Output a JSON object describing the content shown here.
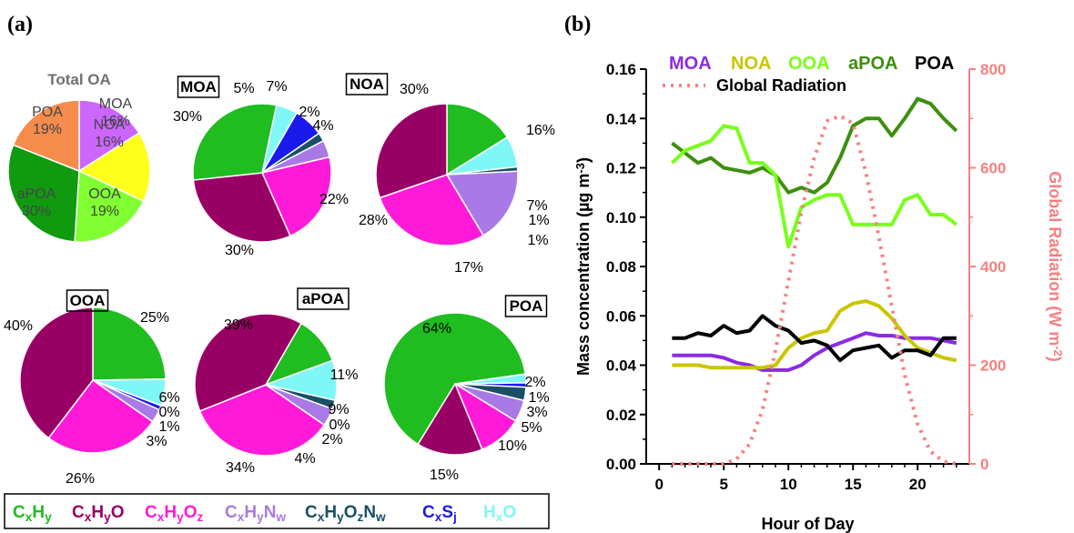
{
  "panels": {
    "a": "(a)",
    "b": "(b)"
  },
  "colors": {
    "CxHy": "#1fbd1f",
    "CxHyO": "#990066",
    "CxHyOz": "#ff1ad9",
    "CxHyNw": "#a97ae6",
    "CxHyOzNw": "#1a4f66",
    "CxSj": "#1a1aeb",
    "HxO": "#7ff7f7",
    "MOA": "#8a2be2",
    "NOA": "#c9c600",
    "OOA": "#78ff1a",
    "aPOA": "#3d8f0f",
    "POA": "#000000",
    "radiation": "#f88080",
    "mass_axis": "#000000"
  },
  "legend_families": [
    {
      "key": "CxHy",
      "parts": [
        [
          "C",
          ""
        ],
        [
          "x",
          "sub"
        ],
        [
          "H",
          ""
        ],
        [
          "y",
          "sub"
        ]
      ]
    },
    {
      "key": "CxHyO",
      "parts": [
        [
          "C",
          ""
        ],
        [
          "x",
          "sub"
        ],
        [
          "H",
          ""
        ],
        [
          "y",
          "sub"
        ],
        [
          "O",
          ""
        ]
      ]
    },
    {
      "key": "CxHyOz",
      "parts": [
        [
          "C",
          ""
        ],
        [
          "x",
          "sub"
        ],
        [
          "H",
          ""
        ],
        [
          "y",
          "sub"
        ],
        [
          "O",
          ""
        ],
        [
          "z",
          "sub"
        ]
      ]
    },
    {
      "key": "CxHyNw",
      "parts": [
        [
          "C",
          ""
        ],
        [
          "x",
          "sub"
        ],
        [
          "H",
          ""
        ],
        [
          "y",
          "sub"
        ],
        [
          "N",
          ""
        ],
        [
          "w",
          "sub"
        ]
      ]
    },
    {
      "key": "CxHyOzNw",
      "parts": [
        [
          "C",
          ""
        ],
        [
          "x",
          "sub"
        ],
        [
          "H",
          ""
        ],
        [
          "y",
          "sub"
        ],
        [
          "O",
          ""
        ],
        [
          "z",
          "sub"
        ],
        [
          "N",
          ""
        ],
        [
          "w",
          "sub"
        ]
      ]
    },
    {
      "key": "CxSj",
      "parts": [
        [
          "C",
          ""
        ],
        [
          "x",
          "sub"
        ],
        [
          "S",
          ""
        ],
        [
          "j",
          "sub"
        ]
      ]
    },
    {
      "key": "HxO",
      "parts": [
        [
          "H",
          ""
        ],
        [
          "x",
          "sub"
        ],
        [
          "O",
          ""
        ]
      ]
    }
  ],
  "chart_data": [
    {
      "type": "pie",
      "title": "Total OA",
      "slices": [
        {
          "label": "MOA",
          "pct": "16%",
          "value": 16,
          "color": "#cc66ff"
        },
        {
          "label": "NOA",
          "pct": "16%",
          "value": 16,
          "color": "#ffff1a"
        },
        {
          "label": "OOA",
          "pct": "19%",
          "value": 19,
          "color": "#80ff33"
        },
        {
          "label": "aPOA",
          "pct": "30%",
          "value": 30,
          "color": "#0f9a0f"
        },
        {
          "label": "POA",
          "pct": "19%",
          "value": 19,
          "color": "#f58c4c"
        }
      ]
    },
    {
      "type": "pie",
      "title": "MOA",
      "slices": [
        {
          "family": "HxO",
          "value": 5,
          "label": "5%"
        },
        {
          "family": "CxSj",
          "value": 7,
          "label": "7%"
        },
        {
          "family": "CxHyOzNw",
          "value": 2,
          "label": "2%"
        },
        {
          "family": "CxHyNw",
          "value": 4,
          "label": "4%"
        },
        {
          "family": "CxHyOz",
          "value": 22,
          "label": "22%"
        },
        {
          "family": "CxHyO",
          "value": 30,
          "label": "30%"
        },
        {
          "family": "CxHy",
          "value": 30,
          "label": "30%"
        }
      ]
    },
    {
      "type": "pie",
      "title": "NOA",
      "slices": [
        {
          "family": "CxHy",
          "value": 16,
          "label": "16%"
        },
        {
          "family": "HxO",
          "value": 7,
          "label": "7%"
        },
        {
          "family": "CxHyOzNw",
          "value": 1,
          "label": "1%"
        },
        {
          "family": "CxHyNw",
          "value": 17,
          "label": "17%"
        },
        {
          "family": "CxHyOz",
          "value": 28,
          "label": "28%"
        },
        {
          "family": "CxHyO",
          "value": 30,
          "label": "30%"
        }
      ],
      "extra_labels": [
        "1%"
      ]
    },
    {
      "type": "pie",
      "title": "OOA",
      "slices": [
        {
          "family": "CxHy",
          "value": 25,
          "label": "25%"
        },
        {
          "family": "HxO",
          "value": 6,
          "label": "6%"
        },
        {
          "family": "CxHyOzNw",
          "value": 0,
          "label": "0%"
        },
        {
          "family": "CxSj",
          "value": 1,
          "label": "1%"
        },
        {
          "family": "CxHyNw",
          "value": 3,
          "label": "3%"
        },
        {
          "family": "CxHyOz",
          "value": 26,
          "label": "26%"
        },
        {
          "family": "CxHyO",
          "value": 40,
          "label": "40%"
        }
      ]
    },
    {
      "type": "pie",
      "title": "aPOA",
      "slices": [
        {
          "family": "CxHy",
          "value": 11,
          "label": "11%"
        },
        {
          "family": "HxO",
          "value": 9,
          "label": "9%"
        },
        {
          "family": "CxSj",
          "value": 0,
          "label": "0%"
        },
        {
          "family": "CxHyOzNw",
          "value": 2,
          "label": "2%"
        },
        {
          "family": "CxHyNw",
          "value": 4,
          "label": "4%"
        },
        {
          "family": "CxHyOz",
          "value": 34,
          "label": "34%"
        },
        {
          "family": "CxHyO",
          "value": 39,
          "label": "39%"
        }
      ]
    },
    {
      "type": "pie",
      "title": "POA",
      "slices": [
        {
          "family": "HxO",
          "value": 2,
          "label": "2%"
        },
        {
          "family": "CxSj",
          "value": 1,
          "label": "1%"
        },
        {
          "family": "CxHyOzNw",
          "value": 3,
          "label": "3%"
        },
        {
          "family": "CxHyNw",
          "value": 5,
          "label": "5%"
        },
        {
          "family": "CxHyOz",
          "value": 10,
          "label": "10%"
        },
        {
          "family": "CxHyO",
          "value": 15,
          "label": "15%"
        },
        {
          "family": "CxHy",
          "value": 64,
          "label": "64%"
        }
      ]
    },
    {
      "type": "line",
      "xlabel": "Hour of Day",
      "ylabel_parts": [
        [
          "Mass concentration (µg m",
          ""
        ],
        [
          "-3",
          "sup"
        ],
        [
          ")",
          ""
        ]
      ],
      "y2label_parts": [
        [
          "Global Radiation (W m",
          ""
        ],
        [
          "-2",
          "sup"
        ],
        [
          ")",
          ""
        ]
      ],
      "xlim": [
        -1,
        24
      ],
      "ylim": [
        0,
        0.16
      ],
      "y2lim": [
        0,
        800
      ],
      "xticks": [
        0,
        5,
        10,
        15,
        20
      ],
      "yticks": [
        "0.00",
        "0.02",
        "0.04",
        "0.06",
        "0.08",
        "0.10",
        "0.12",
        "0.14",
        "0.16"
      ],
      "y2ticks": [
        "0",
        "200",
        "400",
        "600",
        "800"
      ],
      "legend_row": [
        "MOA",
        "NOA",
        "OOA",
        "aPOA",
        "POA"
      ],
      "radiation_legend": "Global Radiation",
      "x": [
        1,
        2,
        3,
        4,
        5,
        6,
        7,
        8,
        9,
        10,
        11,
        12,
        13,
        14,
        15,
        16,
        17,
        18,
        19,
        20,
        21,
        22,
        23
      ],
      "series": [
        {
          "name": "aPOA",
          "color": "#3d8f0f",
          "values": [
            0.13,
            0.126,
            0.122,
            0.124,
            0.12,
            0.119,
            0.118,
            0.12,
            0.117,
            0.11,
            0.112,
            0.11,
            0.114,
            0.124,
            0.137,
            0.14,
            0.14,
            0.133,
            0.14,
            0.148,
            0.146,
            0.14,
            0.135
          ]
        },
        {
          "name": "OOA",
          "color": "#78ff1a",
          "values": [
            0.122,
            0.127,
            0.129,
            0.131,
            0.137,
            0.136,
            0.122,
            0.122,
            0.117,
            0.088,
            0.104,
            0.107,
            0.109,
            0.109,
            0.097,
            0.097,
            0.097,
            0.097,
            0.107,
            0.109,
            0.101,
            0.101,
            0.097
          ]
        },
        {
          "name": "MOA",
          "color": "#8a2be2",
          "values": [
            0.044,
            0.044,
            0.044,
            0.044,
            0.043,
            0.041,
            0.04,
            0.038,
            0.038,
            0.038,
            0.04,
            0.044,
            0.047,
            0.049,
            0.051,
            0.053,
            0.052,
            0.052,
            0.051,
            0.051,
            0.051,
            0.05,
            0.049
          ]
        },
        {
          "name": "NOA",
          "color": "#c9c600",
          "values": [
            0.04,
            0.04,
            0.04,
            0.039,
            0.039,
            0.039,
            0.039,
            0.039,
            0.04,
            0.047,
            0.051,
            0.053,
            0.054,
            0.062,
            0.065,
            0.066,
            0.064,
            0.059,
            0.052,
            0.047,
            0.045,
            0.043,
            0.042
          ]
        },
        {
          "name": "POA",
          "color": "#000000",
          "values": [
            0.051,
            0.051,
            0.053,
            0.052,
            0.056,
            0.053,
            0.054,
            0.06,
            0.056,
            0.054,
            0.049,
            0.05,
            0.048,
            0.042,
            0.046,
            0.047,
            0.048,
            0.043,
            0.046,
            0.046,
            0.044,
            0.051,
            0.051
          ]
        },
        {
          "name": "Global Radiation",
          "color": "#f88080",
          "axis": "right",
          "dashed": true,
          "values": [
            0,
            0,
            0,
            0,
            0,
            10,
            40,
            110,
            230,
            370,
            510,
            620,
            695,
            705,
            690,
            590,
            460,
            320,
            180,
            80,
            25,
            5,
            0
          ]
        }
      ]
    }
  ]
}
